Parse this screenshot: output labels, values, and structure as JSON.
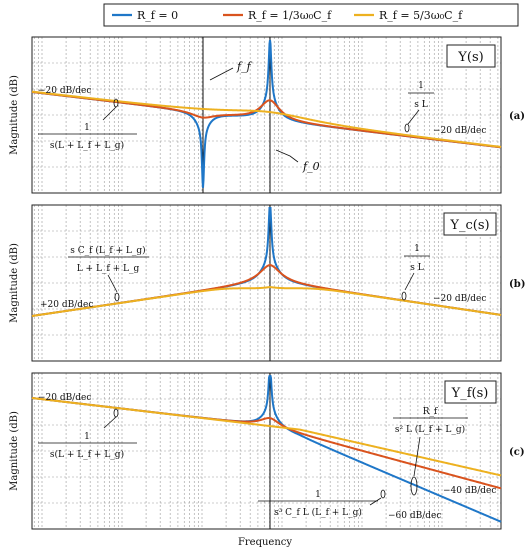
{
  "legend": {
    "entries": [
      {
        "label": "R_f = 0",
        "color": "#1f77c8"
      },
      {
        "label": "R_f = 1/3ω₀C_f",
        "color": "#d9531e"
      },
      {
        "label": "R_f = 5/3ω₀C_f",
        "color": "#edb120"
      }
    ]
  },
  "xlabel": "Frequency",
  "ylabel": "Magnitude (dB)",
  "chart_data": [
    {
      "type": "line",
      "panel": "(a)",
      "title": "Y(s)",
      "xlabel": "Frequency",
      "ylabel": "Magnitude (dB)",
      "x_scale": "log",
      "grid": true,
      "legend_position": "top",
      "series": [
        {
          "name": "R_f = 0",
          "color": "#1f77c8"
        },
        {
          "name": "R_f = 1/3ω₀C_f",
          "color": "#d9531e"
        },
        {
          "name": "R_f = 5/3ω₀C_f",
          "color": "#edb120"
        }
      ],
      "markers": [
        {
          "label": "f_f"
        },
        {
          "label": "f_0"
        }
      ],
      "annotations": [
        {
          "text": "−20 dB/dec"
        },
        {
          "num": "1",
          "den": "s(L + L_f + L_g)"
        },
        {
          "num": "1",
          "den": "s L"
        },
        {
          "text": "−20 dB/dec"
        }
      ]
    },
    {
      "type": "line",
      "panel": "(b)",
      "title": "Y_c(s)",
      "xlabel": "Frequency",
      "ylabel": "Magnitude (dB)",
      "x_scale": "log",
      "grid": true,
      "series": [
        {
          "name": "R_f = 0",
          "color": "#1f77c8"
        },
        {
          "name": "R_f = 1/3ω₀C_f",
          "color": "#d9531e"
        },
        {
          "name": "R_f = 5/3ω₀C_f",
          "color": "#edb120"
        }
      ],
      "annotations": [
        {
          "num": "s C_f (L_f + L_g)",
          "den": "L + L_f + L_g"
        },
        {
          "text": "+20 dB/dec"
        },
        {
          "num": "1",
          "den": "s L"
        },
        {
          "text": "−20 dB/dec"
        }
      ]
    },
    {
      "type": "line",
      "panel": "(c)",
      "title": "Y_f(s)",
      "xlabel": "Frequency",
      "ylabel": "Magnitude (dB)",
      "x_scale": "log",
      "grid": true,
      "series": [
        {
          "name": "R_f = 0",
          "color": "#1f77c8"
        },
        {
          "name": "R_f = 1/3ω₀C_f",
          "color": "#d9531e"
        },
        {
          "name": "R_f = 5/3ω₀C_f",
          "color": "#edb120"
        }
      ],
      "annotations": [
        {
          "text": "−20 dB/dec"
        },
        {
          "num": "1",
          "den": "s(L + L_f + L_g)"
        },
        {
          "num": "R_f",
          "den": "s² L (L_f + L_g)"
        },
        {
          "text": "−40 dB/dec"
        },
        {
          "num": "1",
          "den": "s³ C_f L (L_f + L_g)"
        },
        {
          "text": "−60 dB/dec"
        }
      ]
    }
  ]
}
